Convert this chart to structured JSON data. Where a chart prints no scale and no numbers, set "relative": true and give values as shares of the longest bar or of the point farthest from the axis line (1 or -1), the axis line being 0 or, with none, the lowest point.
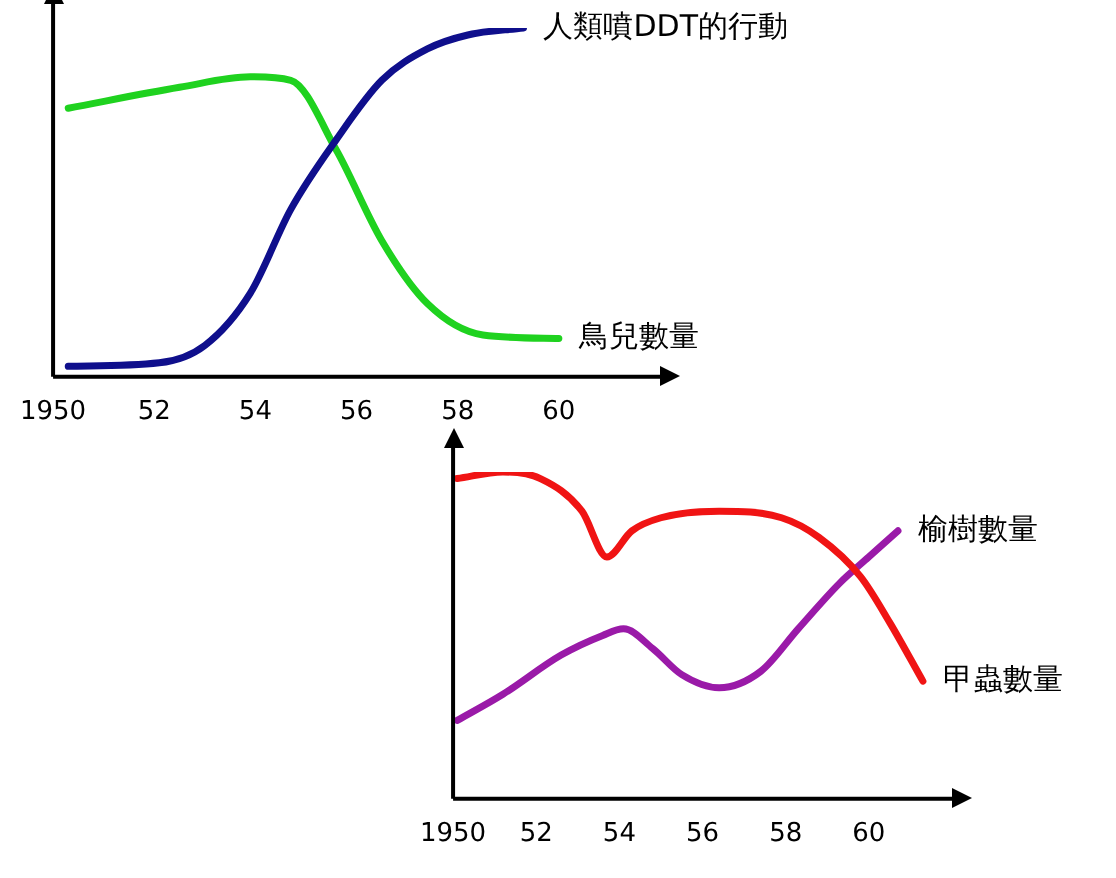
{
  "chart_data": [
    {
      "type": "line",
      "relative": true,
      "marker": "none",
      "legend": false,
      "grid": false,
      "xlim": [
        1950,
        1962
      ],
      "xticks": [
        {
          "value": 1950,
          "label": "1950"
        },
        {
          "value": 1952,
          "label": "52"
        },
        {
          "value": 1954,
          "label": "54"
        },
        {
          "value": 1956,
          "label": "56"
        },
        {
          "value": 1958,
          "label": "58"
        },
        {
          "value": 1960,
          "label": "60"
        }
      ],
      "series": [
        {
          "name": "人類噴DDT的行動",
          "color": "#0f0f8c",
          "x": [
            1950.3,
            1952.1,
            1953.0,
            1953.9,
            1954.7,
            1955.6,
            1956.5,
            1957.4,
            1958.2,
            1959.3
          ],
          "values": [
            0.03,
            0.04,
            0.09,
            0.24,
            0.48,
            0.68,
            0.85,
            0.94,
            0.98,
            1
          ]
        },
        {
          "name": "鳥兒數量",
          "color": "#1fd21f",
          "x": [
            1950.3,
            1952.5,
            1953.9,
            1954.7,
            1955.6,
            1956.5,
            1957.4,
            1958.5,
            1960.0
          ],
          "values": [
            0.77,
            0.83,
            0.86,
            0.85,
            0.65,
            0.39,
            0.21,
            0.12,
            0.11
          ]
        }
      ]
    },
    {
      "type": "line",
      "relative": true,
      "marker": "none",
      "legend": false,
      "grid": false,
      "xlim": [
        1950,
        1962
      ],
      "xticks": [
        {
          "value": 1950,
          "label": "1950"
        },
        {
          "value": 1952,
          "label": "52"
        },
        {
          "value": 1954,
          "label": "54"
        },
        {
          "value": 1956,
          "label": "56"
        },
        {
          "value": 1958,
          "label": "58"
        },
        {
          "value": 1960,
          "label": "60"
        }
      ],
      "series": [
        {
          "name": "甲蟲數量",
          "color": "#f01414",
          "x": [
            1950.1,
            1951.2,
            1952.1,
            1953.1,
            1953.7,
            1954.3,
            1955.0,
            1956.4,
            1957.9,
            1958.8,
            1959.8,
            1960.5,
            1961.3
          ],
          "values": [
            0.98,
            1,
            0.98,
            0.88,
            0.74,
            0.82,
            0.86,
            0.88,
            0.86,
            0.8,
            0.68,
            0.54,
            0.36
          ]
        },
        {
          "name": "榆樹數量",
          "color": "#9a1aa8",
          "x": [
            1950.1,
            1951.2,
            1952.6,
            1953.6,
            1954.1,
            1954.8,
            1955.5,
            1956.4,
            1957.4,
            1958.3,
            1959.3,
            1960.0,
            1960.7
          ],
          "values": [
            0.24,
            0.32,
            0.44,
            0.5,
            0.52,
            0.46,
            0.38,
            0.34,
            0.39,
            0.52,
            0.66,
            0.74,
            0.82
          ]
        }
      ]
    }
  ]
}
